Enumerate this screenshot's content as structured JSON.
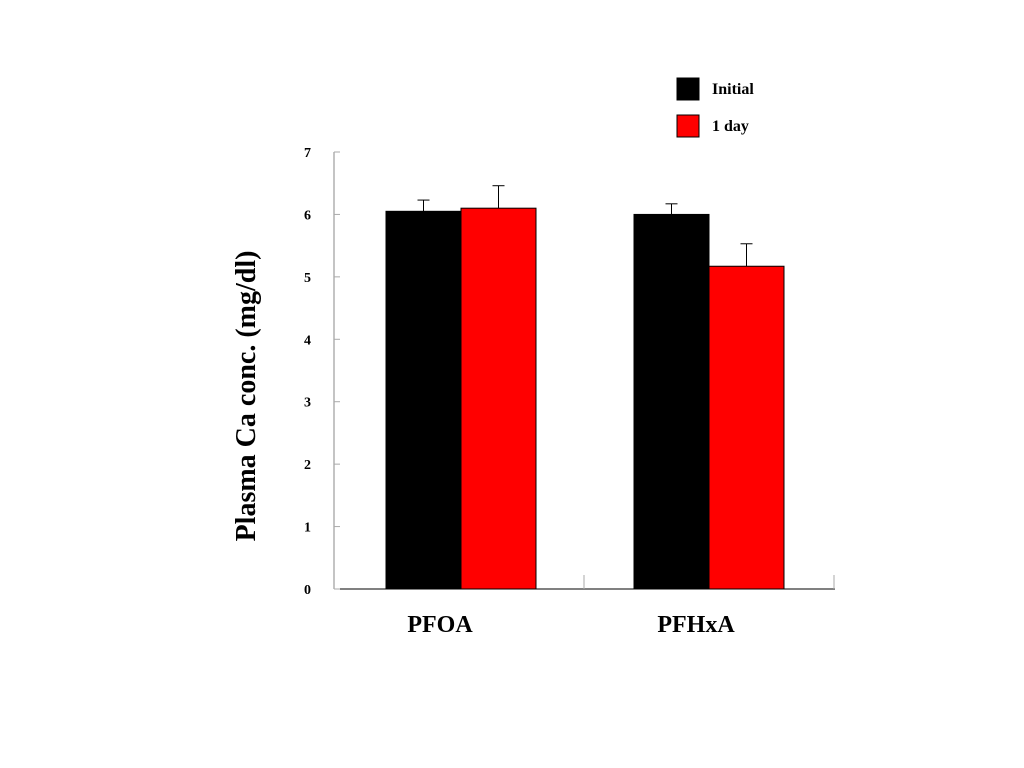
{
  "chart_data": {
    "type": "bar",
    "categories": [
      "PFOA",
      "PFHxA"
    ],
    "series": [
      {
        "name": "Initial",
        "color": "#000000",
        "values": [
          6.05,
          6.0
        ],
        "errors": [
          0.18,
          0.17
        ]
      },
      {
        "name": "1 day",
        "color": "#ff0000",
        "values": [
          6.1,
          5.17
        ],
        "errors": [
          0.36,
          0.36
        ]
      }
    ],
    "title": "",
    "xlabel": "",
    "ylabel": "Plasma Ca conc. (mg/dl)",
    "ylim": [
      0,
      7
    ],
    "yticks": [
      "0",
      "1",
      "2",
      "3",
      "4",
      "5",
      "6",
      "7"
    ],
    "grid": false,
    "legend_position": "top-right"
  }
}
